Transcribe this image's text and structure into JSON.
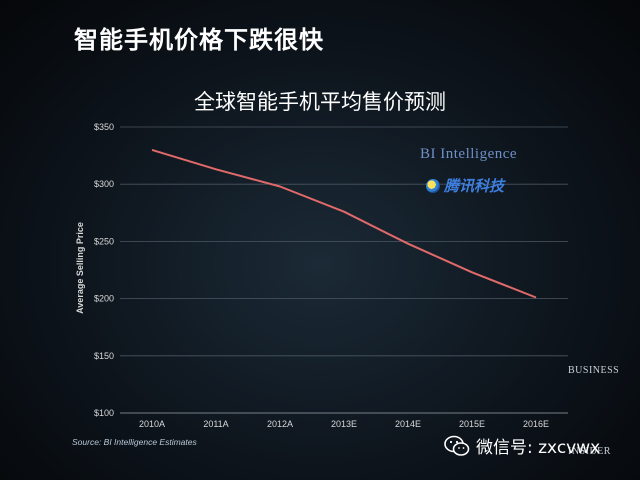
{
  "slide": {
    "title": "智能手机价格下跌很快"
  },
  "chart_data": {
    "type": "line",
    "title": "全球智能手机平均售价预测",
    "xlabel": "",
    "ylabel": "Average Selling Price",
    "categories": [
      "2010A",
      "2011A",
      "2012A",
      "2013E",
      "2014E",
      "2015E",
      "2016E"
    ],
    "series": [
      {
        "values": [
          330,
          313,
          298,
          276,
          248,
          223,
          201
        ]
      }
    ],
    "ylim": [
      100,
      350
    ],
    "yticks": [
      100,
      150,
      200,
      250,
      300,
      350
    ],
    "ytick_labels": [
      "$100",
      "$150",
      "$200",
      "$250",
      "$300",
      "$350"
    ],
    "grid": true,
    "line_color": "#e06a6a"
  },
  "source": "Source: BI Intelligence Estimates",
  "logos": {
    "bi_intelligence": "BI Intelligence",
    "tencent": "腾讯科技",
    "business_insider_line1": "BUSINESS",
    "business_insider_line2": "INSIDER",
    "wechat_icon": "wechat-icon"
  },
  "wechat": {
    "label": "微信号: zxcvwx"
  }
}
